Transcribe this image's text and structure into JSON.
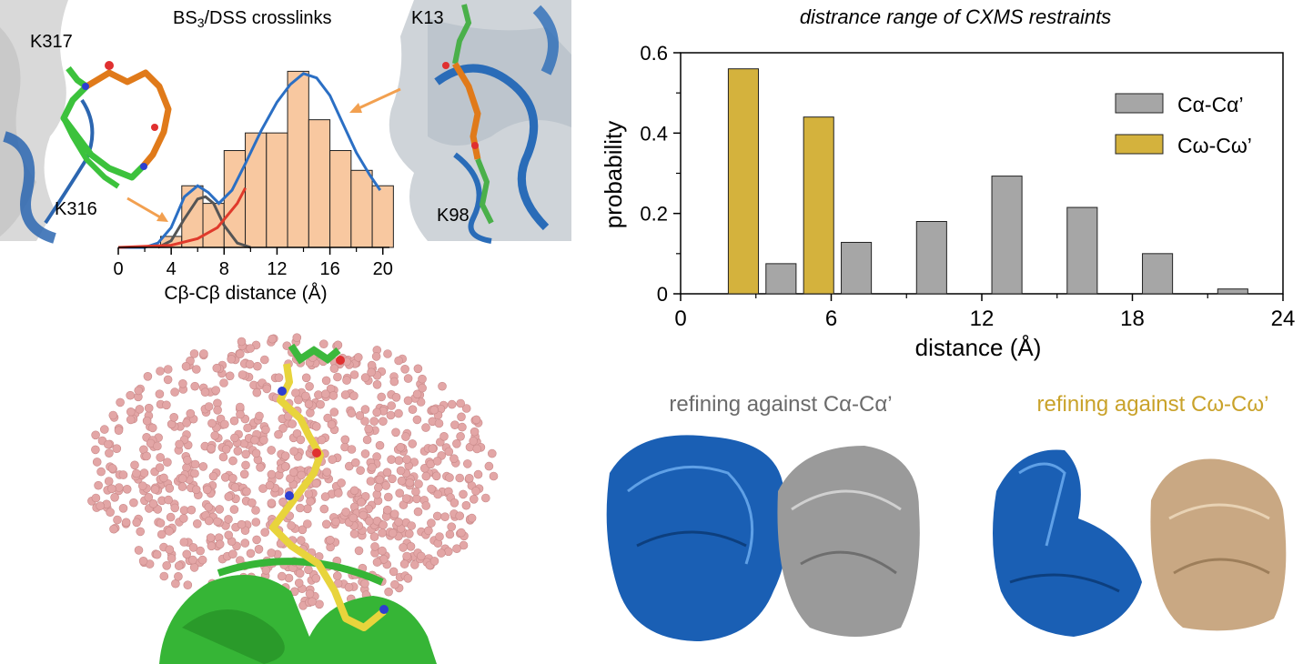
{
  "chart_data": [
    {
      "type": "bar",
      "title": "BS3/DSS crosslinks",
      "title_main": "BS",
      "title_sub": "3",
      "title_rest": "/DSS crosslinks",
      "xlabel": "Cβ-Cβ distance (Å)",
      "ylabel": "",
      "xlim": [
        0,
        20.5
      ],
      "ylim": [
        0,
        1
      ],
      "x_ticks": [
        0,
        4,
        8,
        12,
        16,
        20
      ],
      "bin_width": 1.6,
      "bars": [
        {
          "x0": 3.2,
          "value": 0.05
        },
        {
          "x0": 4.8,
          "value": 0.28
        },
        {
          "x0": 6.4,
          "value": 0.2
        },
        {
          "x0": 8.0,
          "value": 0.44
        },
        {
          "x0": 9.6,
          "value": 0.52
        },
        {
          "x0": 11.2,
          "value": 0.52
        },
        {
          "x0": 12.8,
          "value": 0.8
        },
        {
          "x0": 14.4,
          "value": 0.58
        },
        {
          "x0": 16.0,
          "value": 0.44
        },
        {
          "x0": 17.6,
          "value": 0.35
        },
        {
          "x0": 19.2,
          "value": 0.28
        }
      ],
      "curves": [
        {
          "name": "fit",
          "color": "#2b6fc4",
          "points": [
            [
              0,
              0
            ],
            [
              2,
              0.0
            ],
            [
              3,
              0.02
            ],
            [
              4,
              0.09
            ],
            [
              5,
              0.23
            ],
            [
              6,
              0.28
            ],
            [
              6.8,
              0.25
            ],
            [
              7.6,
              0.2
            ],
            [
              8.6,
              0.26
            ],
            [
              9.6,
              0.38
            ],
            [
              10.8,
              0.53
            ],
            [
              12,
              0.66
            ],
            [
              13,
              0.74
            ],
            [
              14,
              0.79
            ],
            [
              15,
              0.77
            ],
            [
              16,
              0.69
            ],
            [
              17,
              0.56
            ],
            [
              18,
              0.43
            ],
            [
              19,
              0.33
            ],
            [
              19.8,
              0.26
            ]
          ]
        },
        {
          "name": "short",
          "color": "#555555",
          "points": [
            [
              3,
              0.0
            ],
            [
              4,
              0.03
            ],
            [
              5,
              0.13
            ],
            [
              6,
              0.22
            ],
            [
              6.6,
              0.23
            ],
            [
              7.2,
              0.2
            ],
            [
              8,
              0.1
            ],
            [
              9,
              0.02
            ],
            [
              10,
              0.0
            ]
          ]
        },
        {
          "name": "long",
          "color": "#e03a2b",
          "points": [
            [
              0,
              0.0
            ],
            [
              4,
              0.01
            ],
            [
              6,
              0.04
            ],
            [
              7.5,
              0.09
            ],
            [
              9,
              0.2
            ],
            [
              9.6,
              0.27
            ]
          ]
        }
      ],
      "annotations": {
        "k317": "K317",
        "k316": "K316",
        "k13": "K13",
        "k98": "K98"
      }
    },
    {
      "type": "bar",
      "title": "distrance range of CXMS restraints",
      "xlabel": "distance (Å)",
      "ylabel": "probability",
      "xlim": [
        0,
        24
      ],
      "ylim": [
        0,
        0.6
      ],
      "x_ticks": [
        0,
        6,
        12,
        18,
        24
      ],
      "y_ticks": [
        0,
        0.2,
        0.4,
        0.6
      ],
      "y_tick_labels": [
        "0",
        "0.2",
        "0.4",
        "0.6"
      ],
      "x_tick_labels": [
        "0",
        "6",
        "12",
        "18",
        "24"
      ],
      "legend_position": "top-right",
      "series": [
        {
          "name": "Cα-Cα’",
          "color": "#a6a6a6",
          "bars": [
            {
              "x0": 3.4,
              "x1": 4.6,
              "value": 0.075
            },
            {
              "x0": 6.4,
              "x1": 7.6,
              "value": 0.128
            },
            {
              "x0": 9.4,
              "x1": 10.6,
              "value": 0.18
            },
            {
              "x0": 12.4,
              "x1": 13.6,
              "value": 0.293
            },
            {
              "x0": 15.4,
              "x1": 16.6,
              "value": 0.215
            },
            {
              "x0": 18.4,
              "x1": 19.6,
              "value": 0.1
            },
            {
              "x0": 21.4,
              "x1": 22.6,
              "value": 0.012
            }
          ]
        },
        {
          "name": "Cω-Cω’",
          "color": "#d4b23d",
          "bars": [
            {
              "x0": 1.9,
              "x1": 3.1,
              "value": 0.56
            },
            {
              "x0": 4.9,
              "x1": 6.1,
              "value": 0.44
            }
          ]
        }
      ]
    }
  ],
  "captions": {
    "left": "refining against Cα-Cα’",
    "right": "refining against Cω-Cω’"
  },
  "colors": {
    "bar_fill_left": "#f8c8a0",
    "grey_series": "#a6a6a6",
    "gold_series": "#d4b23d",
    "caption_left": "#6b6b6b",
    "caption_right": "#c9a22a",
    "protein_blue": "#1a5fb4",
    "protein_grey": "#9a9a9a",
    "protein_tan": "#c9a883",
    "pink_spheres": "#e3a6a6",
    "green_ribbon": "#2fb52f",
    "arrow_orange": "#f2a050"
  },
  "icons": {
    "molecule_left": "crosslinked-lysine-structure",
    "molecule_right": "k13-k98-structure",
    "sphere_cloud": "conformer-sphere-cloud",
    "ensembles": "protein-ensemble-structures"
  }
}
